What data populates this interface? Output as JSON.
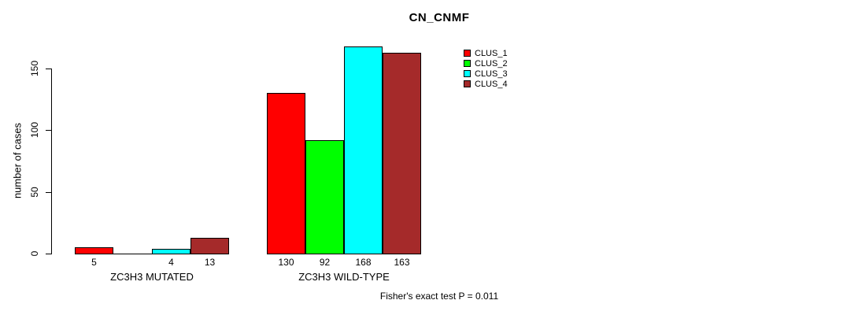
{
  "chart_data": {
    "type": "bar",
    "title": "CN_CNMF",
    "ylabel": "number of cases",
    "xlabel": "",
    "yticks": [
      0,
      50,
      100,
      150
    ],
    "ylim": [
      0,
      168
    ],
    "grid": false,
    "legend_position": "top-right",
    "series": [
      {
        "name": "CLUS_1",
        "color": "#FF0000"
      },
      {
        "name": "CLUS_2",
        "color": "#00FF00"
      },
      {
        "name": "CLUS_3",
        "color": "#00FFFF"
      },
      {
        "name": "CLUS_4",
        "color": "#A52A2A"
      }
    ],
    "groups": [
      {
        "label": "ZC3H3 MUTATED",
        "values": [
          5,
          0,
          4,
          13
        ],
        "value_labels": [
          "5",
          "",
          "4",
          "13"
        ]
      },
      {
        "label": "ZC3H3 WILD-TYPE",
        "values": [
          130,
          92,
          168,
          163
        ],
        "value_labels": [
          "130",
          "92",
          "168",
          "163"
        ]
      }
    ],
    "annotation": "Fisher's exact test P = 0.011"
  },
  "colors": {
    "background": "#FFFFFF",
    "axis": "#000000",
    "text": "#000000"
  }
}
